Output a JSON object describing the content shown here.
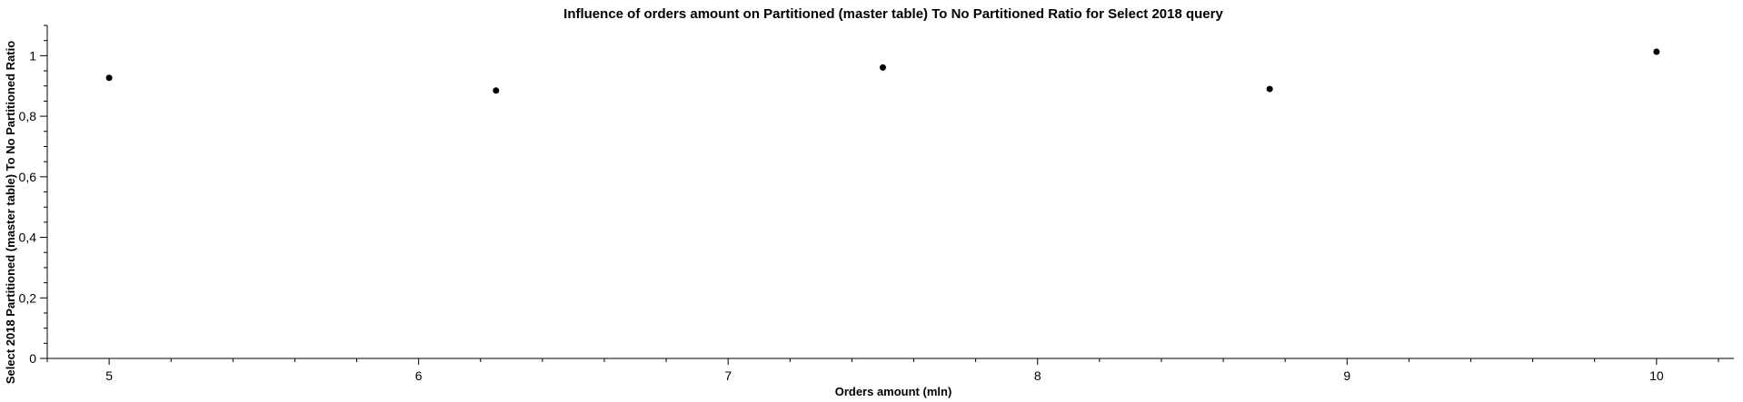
{
  "chart_data": {
    "type": "scatter",
    "title": "Influence of orders amount on Partitioned (master table) To No Partitioned Ratio for Select 2018 query",
    "xlabel": "Orders amount (mln)",
    "ylabel": "Select 2018 Partitioned (master table) To No Partitioned Ratio",
    "xlim": [
      4.8,
      10.25
    ],
    "ylim": [
      0,
      1.1
    ],
    "x_ticks": [
      5,
      6,
      7,
      8,
      9,
      10
    ],
    "x_tick_labels": [
      "5",
      "6",
      "7",
      "8",
      "9",
      "10"
    ],
    "x_minor_step": 0.2,
    "y_ticks": [
      0,
      0.2,
      0.4,
      0.6,
      0.8,
      1
    ],
    "y_tick_labels": [
      "0",
      "0,2",
      "0,4",
      "0,6",
      "0,8",
      "1"
    ],
    "y_minor_step": 0.05,
    "grid": false,
    "legend": "none",
    "point_color": "#000000",
    "series": [
      {
        "x": [
          5,
          6.25,
          7.5,
          8.75,
          10
        ],
        "y": [
          0.927,
          0.885,
          0.961,
          0.89,
          1.013
        ]
      }
    ]
  }
}
